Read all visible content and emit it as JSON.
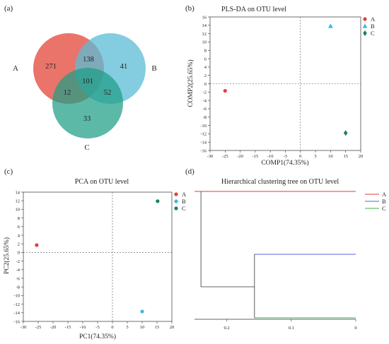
{
  "panels": {
    "a": "(a)",
    "b": "(b)",
    "c": "(c)",
    "d": "(d)"
  },
  "chart_data": [
    {
      "type": "venn",
      "panel": "(a)",
      "sets": [
        "A",
        "B",
        "C"
      ],
      "regions": {
        "A_only": 271,
        "B_only": 41,
        "C_only": 33,
        "AB_only": 138,
        "AC_only": 12,
        "BC_only": 52,
        "ABC": 101
      },
      "colors": {
        "A": "#e8655a",
        "B": "#5bbcd6",
        "C": "#1f9e85"
      }
    },
    {
      "type": "scatter",
      "panel": "(b)",
      "title": "PLS-DA on OTU level",
      "xlabel": "COMP1(74.35%)",
      "ylabel": "COMP2(25.65%)",
      "xlim": [
        -30,
        20
      ],
      "ylim": [
        -16,
        16
      ],
      "xticks": [
        -30,
        -25,
        -20,
        -15,
        -10,
        -5,
        0,
        5,
        10,
        15,
        20
      ],
      "yticks": [
        -16,
        -14,
        -12,
        -10,
        -8,
        -6,
        -4,
        -2,
        0,
        2,
        4,
        6,
        8,
        10,
        12,
        14,
        16
      ],
      "series": [
        {
          "name": "A",
          "marker": "circle",
          "color": "#e0413a",
          "x": -25,
          "y": -1.7
        },
        {
          "name": "B",
          "marker": "triangle",
          "color": "#3fb6de",
          "x": 10,
          "y": 13.8
        },
        {
          "name": "C",
          "marker": "diamond",
          "color": "#14806b",
          "x": 15,
          "y": -11.8
        }
      ],
      "legend": "top-right"
    },
    {
      "type": "scatter",
      "panel": "(c)",
      "title": "PCA on OTU level",
      "xlabel": "PC1(74.35%)",
      "ylabel": "PC2(25.65%)",
      "xlim": [
        -30,
        20
      ],
      "ylim": [
        -16,
        14
      ],
      "xticks": [
        -30,
        -25,
        -20,
        -15,
        -10,
        -5,
        0,
        5,
        10,
        15,
        20
      ],
      "yticks": [
        -16,
        -14,
        -12,
        -10,
        -8,
        -6,
        -4,
        -2,
        0,
        2,
        4,
        6,
        8,
        10,
        12,
        14
      ],
      "series": [
        {
          "name": "A",
          "marker": "circle",
          "color": "#e0413a",
          "x": -25.5,
          "y": 1.7
        },
        {
          "name": "B",
          "marker": "circle",
          "color": "#3fb6de",
          "x": 10,
          "y": -13.7
        },
        {
          "name": "C",
          "marker": "circle",
          "color": "#14806b",
          "x": 15.2,
          "y": 11.9
        }
      ],
      "legend": "top-right"
    },
    {
      "type": "dendrogram",
      "panel": "(d)",
      "title": "Hierarchical clustering tree on OTU level",
      "xlim": [
        0.25,
        0
      ],
      "xticks": [
        0.2,
        0.1,
        0
      ],
      "tick_labels": [
        "0.2",
        "0.1",
        "0"
      ],
      "leaves": [
        {
          "name": "A",
          "color": "#e03b3b"
        },
        {
          "name": "B",
          "color": "#5560e0"
        },
        {
          "name": "C",
          "color": "#3fae4a"
        }
      ],
      "merges": [
        {
          "members": [
            "B",
            "C"
          ],
          "height": 0.157
        },
        {
          "members": [
            "A",
            "BC"
          ],
          "height": 0.24
        }
      ],
      "legend": "top-right"
    }
  ]
}
